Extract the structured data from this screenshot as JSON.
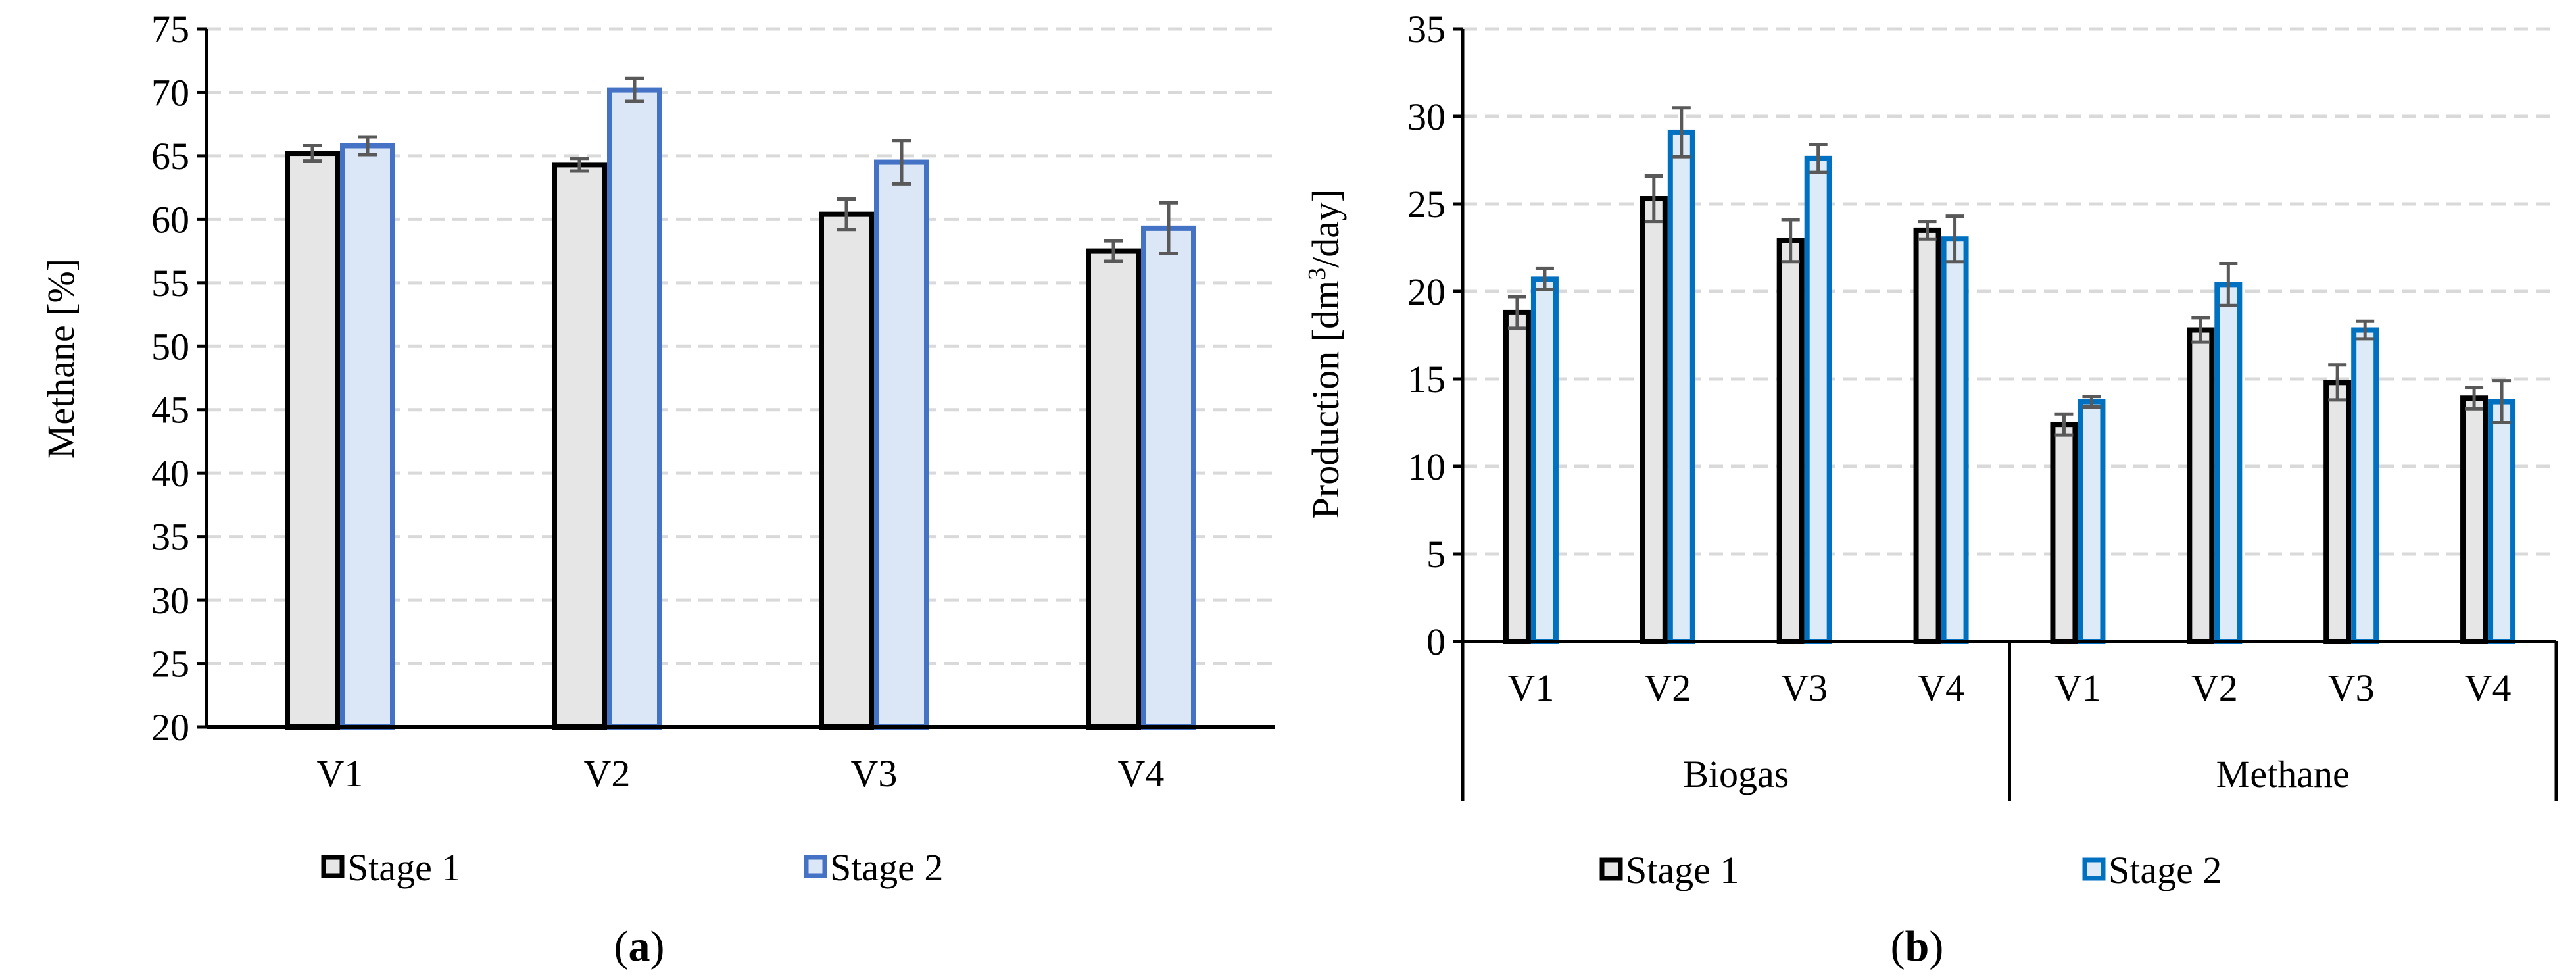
{
  "colors": {
    "stage1_fill": "#e6e6e6",
    "stage1_stroke": "#000000",
    "stage2a_fill": "#dbe7f6",
    "stage2a_stroke": "#4472c4",
    "stage2b_fill": "#dcebf7",
    "stage2b_stroke": "#0070c0",
    "grid": "#d9d9d9",
    "error_bar": "#595959"
  },
  "chart_data": [
    {
      "id": "a",
      "type": "bar",
      "panel_label": "a",
      "title": "",
      "xlabel": "",
      "ylabel": "Methane [%]",
      "ylim": [
        20,
        75
      ],
      "yticks": [
        20,
        25,
        30,
        35,
        40,
        45,
        50,
        55,
        60,
        65,
        70,
        75
      ],
      "grid": true,
      "legend_position": "bottom",
      "categories": [
        "V1",
        "V2",
        "V3",
        "V4"
      ],
      "series": [
        {
          "name": "Stage 1",
          "values": [
            65.2,
            64.3,
            60.4,
            57.5
          ],
          "errors": [
            0.6,
            0.5,
            1.2,
            0.8
          ]
        },
        {
          "name": "Stage 2",
          "values": [
            65.8,
            70.2,
            64.5,
            59.3
          ],
          "errors": [
            0.7,
            0.9,
            1.7,
            2.0
          ]
        }
      ]
    },
    {
      "id": "b",
      "type": "bar",
      "panel_label": "b",
      "title": "",
      "xlabel": "",
      "ylabel_main": "Production [dm",
      "ylabel_sup": "3",
      "ylabel_tail": "/day]",
      "ylim": [
        0,
        35
      ],
      "yticks": [
        0,
        5,
        10,
        15,
        20,
        25,
        30,
        35
      ],
      "grid": true,
      "legend_position": "bottom",
      "groups": [
        "Biogas",
        "Methane"
      ],
      "categories": [
        "V1",
        "V2",
        "V3",
        "V4",
        "V1",
        "V2",
        "V3",
        "V4"
      ],
      "series": [
        {
          "name": "Stage 1",
          "values": [
            18.8,
            25.3,
            22.9,
            23.5,
            12.4,
            17.8,
            14.8,
            13.9
          ],
          "errors": [
            0.9,
            1.3,
            1.2,
            0.5,
            0.6,
            0.7,
            1.0,
            0.6
          ]
        },
        {
          "name": "Stage 2",
          "values": [
            20.7,
            29.1,
            27.6,
            23.0,
            13.7,
            20.4,
            17.8,
            13.7
          ],
          "errors": [
            0.6,
            1.4,
            0.8,
            1.3,
            0.3,
            1.2,
            0.5,
            1.2
          ]
        }
      ]
    }
  ]
}
